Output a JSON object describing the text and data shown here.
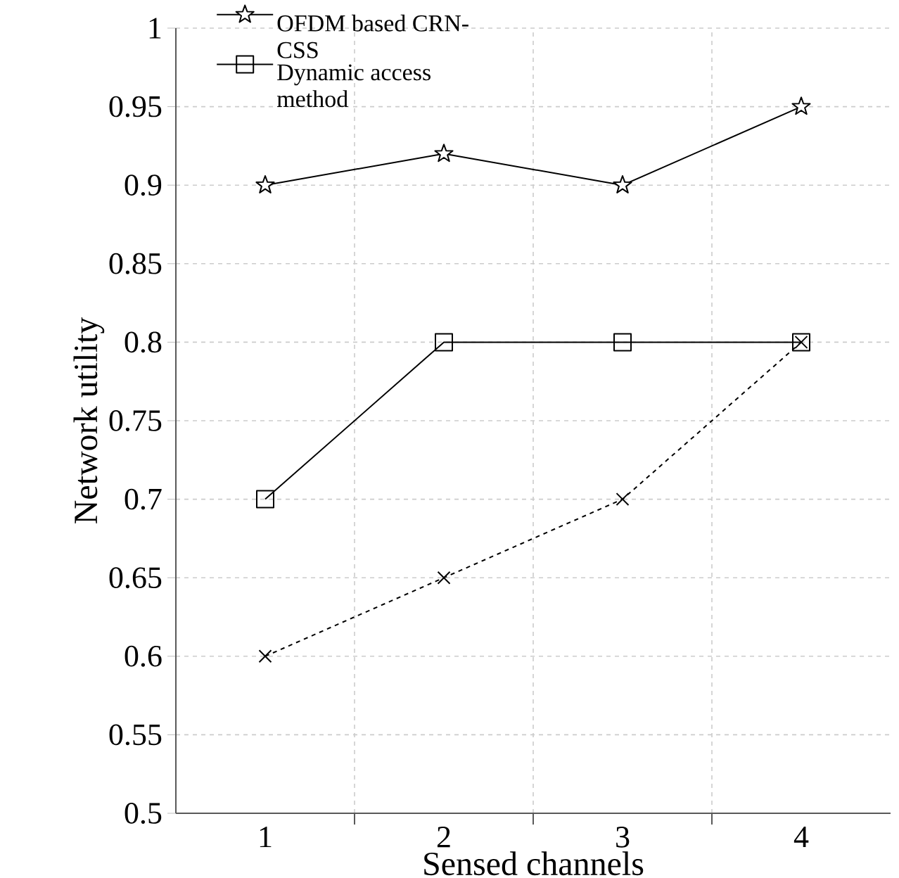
{
  "chart_data": {
    "type": "line",
    "xlabel": "Sensed channels",
    "ylabel": "Network utility",
    "categories": [
      "1",
      "2",
      "3",
      "4"
    ],
    "series": [
      {
        "name": "OFDM based CRN-CSS",
        "color": "#000000",
        "marker": "star",
        "line_style": "solid",
        "values": [
          0.9,
          0.92,
          0.9,
          0.95
        ]
      },
      {
        "name": "Dynamic access method",
        "color": "#000000",
        "marker": "square",
        "line_style": "solid",
        "values": [
          0.7,
          0.8,
          0.8,
          0.8
        ]
      },
      {
        "color": "#000000",
        "marker": "cross",
        "line_style": "dashed",
        "values": [
          0.6,
          0.65,
          0.7,
          0.8
        ]
      }
    ],
    "ylim": [
      0.5,
      1
    ],
    "yticks": [
      0.5,
      0.55,
      0.6,
      0.65,
      0.7,
      0.75,
      0.8,
      0.85,
      0.9,
      0.95,
      1
    ],
    "grid": true,
    "legend": "top left"
  }
}
